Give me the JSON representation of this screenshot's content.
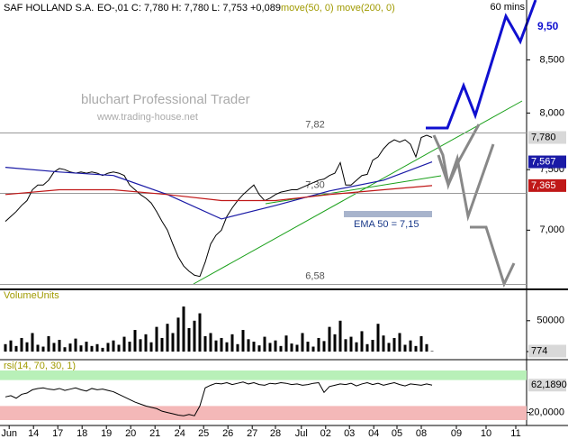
{
  "chart_data": [
    {
      "type": "line",
      "title": "SAF HOLLAND S.A.",
      "subtitle": "EO-,01 C: 7,780 H: 7,780 L: 7,753 +0,089",
      "period": "60 mins",
      "watermark": "bluchart Professional Trader",
      "watermark_url": "www.trading-house.net",
      "log_scale": true,
      "xlim": [
        -1,
        96.5
      ],
      "ylim": [
        6.55,
        9.1
      ],
      "yticks": [
        {
          "value": 8.5,
          "label": "8,500"
        },
        {
          "value": 8,
          "label": "8,000"
        },
        {
          "value": 7.5,
          "label": "7,500"
        },
        {
          "value": 7,
          "label": "7,000"
        }
      ],
      "hlines": [
        {
          "value": 7.82,
          "label": "7,82"
        },
        {
          "value": 7.3,
          "label": "7,30"
        },
        {
          "value": 6.58,
          "label": "6,58"
        }
      ],
      "annotations": [
        "EMA 50 = 7,15",
        "9,50"
      ],
      "series": [
        {
          "color": "#000000",
          "last_label": "7,780",
          "values": [
            7.07,
            7.11,
            7.15,
            7.2,
            7.24,
            7.33,
            7.37,
            7.37,
            7.41,
            7.48,
            7.51,
            7.5,
            7.48,
            7.47,
            7.48,
            7.47,
            7.48,
            7.47,
            7.45,
            7.47,
            7.48,
            7.47,
            7.45,
            7.37,
            7.33,
            7.29,
            7.26,
            7.22,
            7.15,
            7.07,
            7.0,
            6.89,
            6.79,
            6.72,
            6.68,
            6.65,
            6.64,
            6.75,
            6.89,
            6.96,
            7.0,
            7.11,
            7.18,
            7.24,
            7.29,
            7.33,
            7.37,
            7.29,
            7.24,
            7.26,
            7.29,
            7.31,
            7.32,
            7.33,
            7.33,
            7.35,
            7.37,
            7.39,
            7.41,
            7.42,
            7.45,
            7.47,
            7.56,
            7.37,
            7.37,
            7.41,
            7.45,
            7.46,
            7.58,
            7.61,
            7.68,
            7.73,
            7.76,
            7.74,
            7.76,
            7.72,
            7.61,
            7.78,
            7.8,
            7.78
          ]
        },
        {
          "name": "move(50, 0)",
          "color": "#1a1aa6",
          "last_label": "7,567",
          "x": [
            0,
            10,
            20,
            30,
            40,
            50,
            60,
            70,
            79
          ],
          "values": [
            7.52,
            7.48,
            7.45,
            7.29,
            7.09,
            7.2,
            7.32,
            7.41,
            7.567
          ]
        },
        {
          "name": "move(200, 0)",
          "color": "#c01818",
          "last_label": "7,365",
          "x": [
            0,
            10,
            20,
            30,
            40,
            50,
            60,
            70,
            79
          ],
          "values": [
            7.29,
            7.33,
            7.33,
            7.29,
            7.24,
            7.24,
            7.29,
            7.33,
            7.365
          ]
        }
      ]
    },
    {
      "type": "bar",
      "title": "VolumeUnits",
      "xlim": [
        -1,
        96.5
      ],
      "ylim": [
        0,
        95000
      ],
      "yticks": [
        50000,
        0
      ],
      "color": "#000000",
      "last_label": "774",
      "values": [
        12000,
        18000,
        9000,
        22000,
        15000,
        30000,
        11000,
        8000,
        25000,
        14000,
        19000,
        7000,
        13000,
        21000,
        10000,
        16000,
        9000,
        12000,
        6000,
        14000,
        18000,
        11000,
        24000,
        16000,
        35000,
        20000,
        28000,
        15000,
        40000,
        22000,
        45000,
        30000,
        55000,
        73000,
        38000,
        50000,
        62000,
        25000,
        30000,
        18000,
        22000,
        15000,
        28000,
        12000,
        35000,
        20000,
        16000,
        10000,
        24000,
        14000,
        18000,
        9000,
        26000,
        13000,
        11000,
        30000,
        16000,
        8000,
        22000,
        17000,
        40000,
        28000,
        50000,
        20000,
        24000,
        15000,
        33000,
        12000,
        19000,
        45000,
        26000,
        14000,
        22000,
        30000,
        11000,
        18000,
        9000,
        25000,
        12000,
        774
      ]
    },
    {
      "type": "line",
      "title": "rsi(14, 70, 30, 1)",
      "xlim": [
        -1,
        96.5
      ],
      "ylim": [
        0,
        100
      ],
      "overbought": 70,
      "oversold": 30,
      "yticks": [
        {
          "value": 20,
          "label": "20,0000"
        }
      ],
      "color": "#000000",
      "last_label": "62,1890",
      "values": [
        44,
        46,
        42,
        48,
        50,
        55,
        57,
        58,
        56,
        55,
        57,
        54,
        56,
        58,
        55,
        53,
        57,
        55,
        56,
        54,
        52,
        48,
        44,
        40,
        36,
        33,
        30,
        28,
        26,
        22,
        20,
        18,
        16,
        15,
        17,
        15,
        30,
        58,
        62,
        65,
        64,
        66,
        63,
        65,
        67,
        64,
        66,
        63,
        62,
        65,
        64,
        66,
        65,
        63,
        64,
        62,
        63,
        65,
        66,
        51,
        60,
        62,
        64,
        63,
        65,
        61,
        64,
        66,
        63,
        65,
        62,
        64,
        66,
        63,
        61,
        64,
        63,
        62,
        64,
        62.189
      ],
      "xticks": [
        {
          "value": 0.7,
          "label": "Jun"
        },
        {
          "value": 5.2,
          "label": "14"
        },
        {
          "value": 9.7,
          "label": "17"
        },
        {
          "value": 14.2,
          "label": "18"
        },
        {
          "value": 18.7,
          "label": "19"
        },
        {
          "value": 23.2,
          "label": "20"
        },
        {
          "value": 27.7,
          "label": "21"
        },
        {
          "value": 32.3,
          "label": "24"
        },
        {
          "value": 36.7,
          "label": "25"
        },
        {
          "value": 41.2,
          "label": "26"
        },
        {
          "value": 45.7,
          "label": "27"
        },
        {
          "value": 50,
          "label": "28"
        },
        {
          "value": 54.8,
          "label": "Jul"
        },
        {
          "value": 59.3,
          "label": "02"
        },
        {
          "value": 63.7,
          "label": "03"
        },
        {
          "value": 68.2,
          "label": "04"
        },
        {
          "value": 72.5,
          "label": "05"
        },
        {
          "value": 77,
          "label": "08"
        },
        {
          "value": 83.5,
          "label": "09"
        },
        {
          "value": 89,
          "label": "10"
        },
        {
          "value": 94.5,
          "label": "11"
        }
      ]
    }
  ]
}
